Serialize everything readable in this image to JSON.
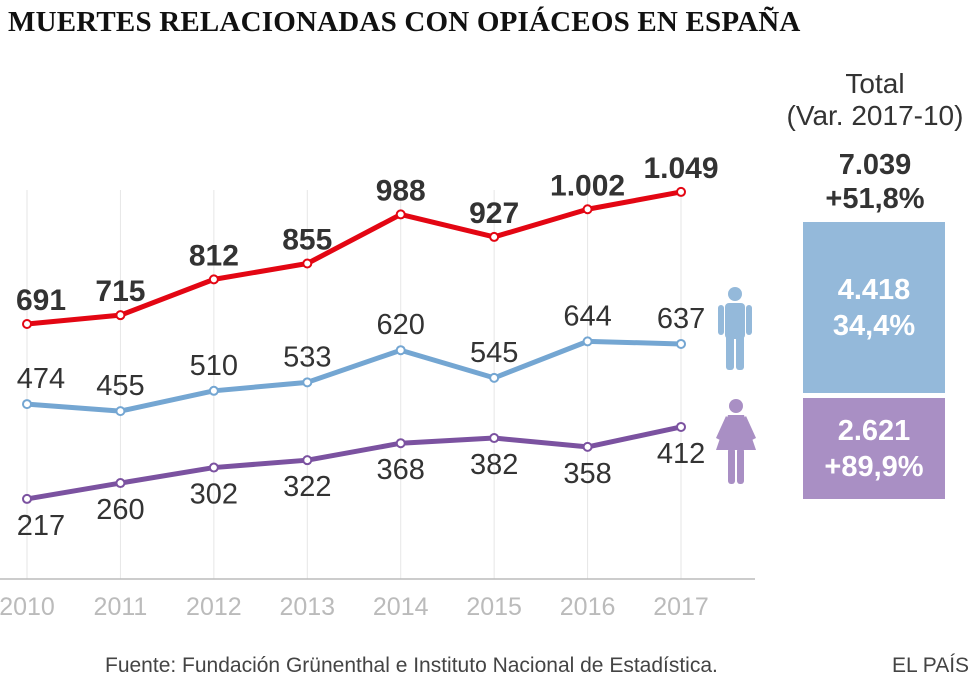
{
  "title": "MUERTES RELACIONADAS CON OPIÁCEOS EN ESPAÑA",
  "chart_data": {
    "type": "line",
    "categories": [
      "2010",
      "2011",
      "2012",
      "2013",
      "2014",
      "2015",
      "2016",
      "2017"
    ],
    "series": [
      {
        "key": "total",
        "values": [
          691,
          715,
          812,
          855,
          988,
          927,
          1002,
          1049
        ],
        "labels": [
          "691",
          "715",
          "812",
          "855",
          "988",
          "927",
          "1.002",
          "1.049"
        ],
        "color": "#e30613"
      },
      {
        "key": "hombres",
        "icon": "male-icon",
        "values": [
          474,
          455,
          510,
          533,
          620,
          545,
          644,
          637
        ],
        "labels": [
          "474",
          "455",
          "510",
          "533",
          "620",
          "545",
          "644",
          "637"
        ],
        "color": "#74a6d2"
      },
      {
        "key": "mujeres",
        "icon": "female-icon",
        "values": [
          217,
          260,
          302,
          322,
          368,
          382,
          358,
          412
        ],
        "labels": [
          "217",
          "260",
          "302",
          "322",
          "368",
          "382",
          "358",
          "412"
        ],
        "color": "#7b52a0"
      }
    ],
    "ylim": [
      0,
      1100
    ],
    "grid": "vertical"
  },
  "summary": {
    "heading_line1": "Total",
    "heading_line2": "(Var. 2017-10)",
    "total_value": "7.039",
    "total_change": "+51,8%",
    "male_value": "4.418",
    "male_change": "34,4%",
    "female_value": "2.621",
    "female_change": "+89,9%",
    "male_color": "#94b9da",
    "female_color": "#a98fc4"
  },
  "source": "Fuente: Fundación Grünenthal e Instituto Nacional de Estadística.",
  "brand": "EL PAÍS"
}
